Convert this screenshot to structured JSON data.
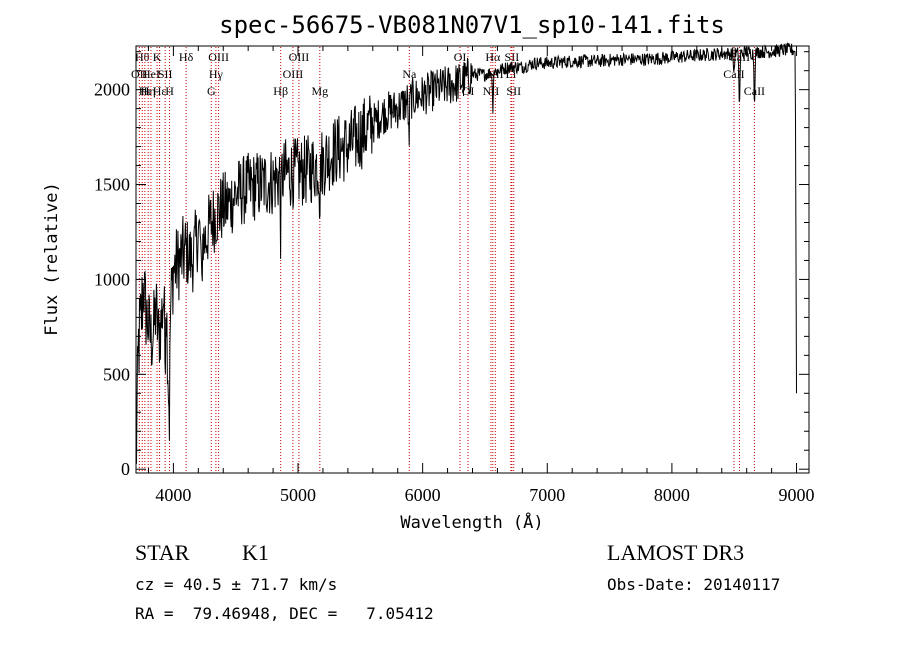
{
  "chart_data": {
    "type": "line",
    "title": "spec-56675-VB081N07V1_sp10-141.fits",
    "xlabel": "Wavelength (Å)",
    "ylabel": "Flux (relative)",
    "xlim": [
      3700,
      9100
    ],
    "ylim": [
      -20,
      2230
    ],
    "xticks": [
      4000,
      5000,
      6000,
      7000,
      8000,
      9000
    ],
    "yticks": [
      0,
      500,
      1000,
      1500,
      2000
    ],
    "spectrum": {
      "x": [
        3700,
        3720,
        3740,
        3760,
        3780,
        3800,
        3820,
        3840,
        3860,
        3880,
        3900,
        3920,
        3940,
        3960,
        3980,
        4000,
        4050,
        4100,
        4150,
        4200,
        4250,
        4300,
        4350,
        4400,
        4450,
        4500,
        4600,
        4700,
        4800,
        4900,
        5000,
        5100,
        5200,
        5300,
        5400,
        5500,
        5600,
        5700,
        5800,
        5900,
        6000,
        6100,
        6200,
        6300,
        6400,
        6500,
        6600,
        6700,
        6800,
        6900,
        7000,
        7200,
        7400,
        7600,
        7800,
        8000,
        8200,
        8400,
        8500,
        8540,
        8600,
        8660,
        8700,
        8800,
        8900,
        8960,
        8990,
        9000
      ],
      "y": [
        0,
        650,
        780,
        980,
        820,
        760,
        680,
        720,
        850,
        700,
        760,
        900,
        950,
        460,
        880,
        1050,
        1100,
        1150,
        1100,
        1250,
        1200,
        1300,
        1350,
        1380,
        1400,
        1450,
        1480,
        1500,
        1520,
        1560,
        1560,
        1580,
        1620,
        1680,
        1700,
        1760,
        1820,
        1880,
        1900,
        1950,
        1970,
        2000,
        2020,
        2040,
        2080,
        2080,
        2100,
        2120,
        2120,
        2140,
        2140,
        2150,
        2150,
        2160,
        2160,
        2170,
        2180,
        2190,
        2190,
        2190,
        2200,
        2190,
        2200,
        2200,
        2210,
        2210,
        2200,
        400
      ],
      "absorption_dips": [
        {
          "x": 3933,
          "depth": 380
        },
        {
          "x": 3968,
          "depth": 360
        },
        {
          "x": 4226,
          "depth": 350
        },
        {
          "x": 4861,
          "depth": 300
        },
        {
          "x": 5175,
          "depth": 220
        },
        {
          "x": 5890,
          "depth": 260
        },
        {
          "x": 6563,
          "depth": 210
        },
        {
          "x": 8498,
          "depth": 120
        },
        {
          "x": 8542,
          "depth": 340
        },
        {
          "x": 8662,
          "depth": 290
        }
      ]
    },
    "line_markers": [
      {
        "x": 3727,
        "labels": [
          "OII"
        ],
        "row": 2
      },
      {
        "x": 3750,
        "labels": [
          "Hθ"
        ],
        "row": 1
      },
      {
        "x": 3771,
        "labels": [
          "Hι"
        ],
        "row": 3
      },
      {
        "x": 3798,
        "labels": [
          "Hη"
        ],
        "row": 3
      },
      {
        "x": 3820,
        "labels": [
          "HeI"
        ],
        "row": 2
      },
      {
        "x": 3869,
        "labels": [
          "K"
        ],
        "row": 1
      },
      {
        "x": 3889,
        "labels": [
          "Hε"
        ],
        "row": 3
      },
      {
        "x": 3934,
        "labels": [
          "SII"
        ],
        "row": 2
      },
      {
        "x": 3969,
        "labels": [
          "H"
        ],
        "row": 3
      },
      {
        "x": 4102,
        "labels": [
          "Hδ"
        ],
        "row": 1
      },
      {
        "x": 4304,
        "labels": [
          "G"
        ],
        "row": 3
      },
      {
        "x": 4341,
        "labels": [
          "Hγ"
        ],
        "row": 2
      },
      {
        "x": 4363,
        "labels": [
          "OIII"
        ],
        "row": 1
      },
      {
        "x": 4861,
        "labels": [
          "Hβ"
        ],
        "row": 3
      },
      {
        "x": 4959,
        "labels": [
          "OIII"
        ],
        "row": 2
      },
      {
        "x": 5007,
        "labels": [
          "OIII"
        ],
        "row": 1
      },
      {
        "x": 5175,
        "labels": [
          "Mg"
        ],
        "row": 3
      },
      {
        "x": 5893,
        "labels": [
          "Na"
        ],
        "row": 2
      },
      {
        "x": 6300,
        "labels": [
          "OI"
        ],
        "row": 1
      },
      {
        "x": 6364,
        "labels": [
          "OI"
        ],
        "row": 3
      },
      {
        "x": 6548,
        "labels": [
          "NII"
        ],
        "row": 3
      },
      {
        "x": 6563,
        "labels": [
          "Hα"
        ],
        "row": 1
      },
      {
        "x": 6583,
        "labels": [
          "NII"
        ],
        "row": 2
      },
      {
        "x": 6708,
        "labels": [
          "Li"
        ],
        "row": 2
      },
      {
        "x": 6716,
        "labels": [
          "SII"
        ],
        "row": 1
      },
      {
        "x": 6731,
        "labels": [
          "SII"
        ],
        "row": 3
      },
      {
        "x": 8498,
        "labels": [
          "CaII"
        ],
        "row": 2
      },
      {
        "x": 8542,
        "labels": [
          "CaII"
        ],
        "row": 1
      },
      {
        "x": 8662,
        "labels": [
          "CaII"
        ],
        "row": 3
      }
    ],
    "marker_color": "#cc0000",
    "line_color": "#000000"
  },
  "info": {
    "object_class": "STAR",
    "subclass": "K1",
    "survey": "LAMOST DR3",
    "redshift": "cz = 40.5 ± 71.7 km/s",
    "obs_date": "Obs-Date: 20140117",
    "coords": "RA =  79.46948, DEC =   7.05412"
  }
}
